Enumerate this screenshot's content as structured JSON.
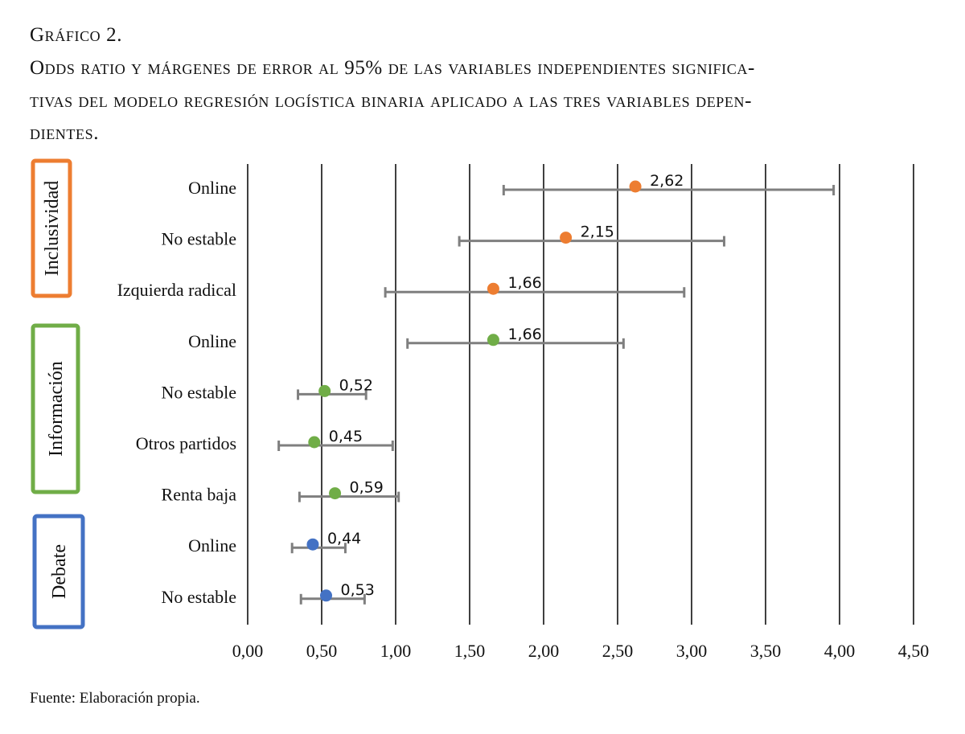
{
  "caption": {
    "title": "Gráfico 2.",
    "lines": [
      "Odds ratio y márgenes de error al 95% de las variables independientes significa-",
      "tivas del modelo regresión logística binaria aplicado a las tres variables depen-",
      "dientes."
    ]
  },
  "source": "Fuente: Elaboración propia.",
  "chart_data": {
    "type": "scatter",
    "subtype": "forest-plot-with-error-bars",
    "title": "Odds ratio y márgenes de error al 95% de las variables independientes significativas del modelo regresión logística binaria aplicado a las tres variables dependientes.",
    "xlabel": "",
    "ylabel": "",
    "xlim": [
      0,
      4.5
    ],
    "xticks": [
      0,
      0.5,
      1,
      1.5,
      2,
      2.5,
      3,
      3.5,
      4,
      4.5
    ],
    "xtick_labels": [
      "0,00",
      "0,50",
      "1,00",
      "1,50",
      "2,00",
      "2,50",
      "3,00",
      "3,50",
      "4,00",
      "4,50"
    ],
    "grid": "vertical",
    "legend": "none",
    "groups": [
      {
        "name": "Inclusividad",
        "color": "#ED7D31"
      },
      {
        "name": "Información",
        "color": "#70AD47"
      },
      {
        "name": "Debate",
        "color": "#4472C4"
      }
    ],
    "error_bar_color": "#7F7F7F",
    "points": [
      {
        "group": "Inclusividad",
        "label": "Online",
        "value": 2.62,
        "value_label": "2,62",
        "ci_low": 1.73,
        "ci_high": 3.96
      },
      {
        "group": "Inclusividad",
        "label": "No estable",
        "value": 2.15,
        "value_label": "2,15",
        "ci_low": 1.43,
        "ci_high": 3.22
      },
      {
        "group": "Inclusividad",
        "label": "Izquierda radical",
        "value": 1.66,
        "value_label": "1,66",
        "ci_low": 0.93,
        "ci_high": 2.95
      },
      {
        "group": "Información",
        "label": "Online",
        "value": 1.66,
        "value_label": "1,66",
        "ci_low": 1.08,
        "ci_high": 2.54
      },
      {
        "group": "Información",
        "label": "No estable",
        "value": 0.52,
        "value_label": "0,52",
        "ci_low": 0.34,
        "ci_high": 0.8
      },
      {
        "group": "Información",
        "label": "Otros partidos",
        "value": 0.45,
        "value_label": "0,45",
        "ci_low": 0.21,
        "ci_high": 0.98
      },
      {
        "group": "Información",
        "label": "Renta baja",
        "value": 0.59,
        "value_label": "0,59",
        "ci_low": 0.35,
        "ci_high": 1.02
      },
      {
        "group": "Debate",
        "label": "Online",
        "value": 0.44,
        "value_label": "0,44",
        "ci_low": 0.3,
        "ci_high": 0.66
      },
      {
        "group": "Debate",
        "label": "No estable",
        "value": 0.53,
        "value_label": "0,53",
        "ci_low": 0.36,
        "ci_high": 0.79
      }
    ]
  }
}
